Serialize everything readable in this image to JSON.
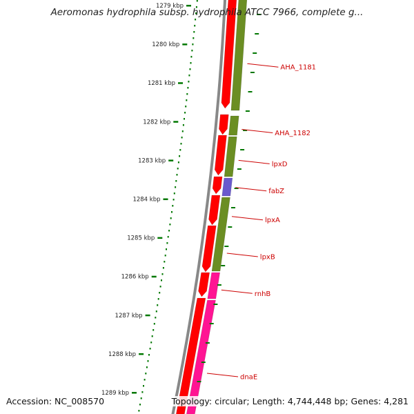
{
  "title": "Aeromonas hydrophila subsp. hydrophila ATCC 7966, complete g...",
  "accession": "Accession: NC_008570",
  "topology": "Topology: circular; Length: 4,744,448 bp; Genes: 4,281",
  "colors": {
    "label": "#cc0000",
    "forward_cds": "#6b8e23",
    "reverse_cds": "#ff0000",
    "trna_like": "#ff1493",
    "purple_feature": "#6a5acd",
    "tick": "#007700",
    "backbone": "#888888"
  },
  "ticks": [
    {
      "label": "1279 kbp",
      "kbp": 1279
    },
    {
      "label": "1280 kbp",
      "kbp": 1280
    },
    {
      "label": "1281 kbp",
      "kbp": 1281
    },
    {
      "label": "1282 kbp",
      "kbp": 1282
    },
    {
      "label": "1283 kbp",
      "kbp": 1283
    },
    {
      "label": "1284 kbp",
      "kbp": 1284
    },
    {
      "label": "1285 kbp",
      "kbp": 1285
    },
    {
      "label": "1286 kbp",
      "kbp": 1286
    },
    {
      "label": "1287 kbp",
      "kbp": 1287
    },
    {
      "label": "1288 kbp",
      "kbp": 1288
    },
    {
      "label": "1289 kbp",
      "kbp": 1289
    }
  ],
  "genes": [
    {
      "name": "AHA_1181",
      "kbp": 1280.5
    },
    {
      "name": "AHA_1182",
      "kbp": 1282.2
    },
    {
      "name": "lpxD",
      "kbp": 1283.0
    },
    {
      "name": "fabZ",
      "kbp": 1283.7
    },
    {
      "name": "lpxA",
      "kbp": 1284.45
    },
    {
      "name": "lpxB",
      "kbp": 1285.4
    },
    {
      "name": "rnhB",
      "kbp": 1286.35
    },
    {
      "name": "dnaE",
      "kbp": 1288.5
    }
  ]
}
